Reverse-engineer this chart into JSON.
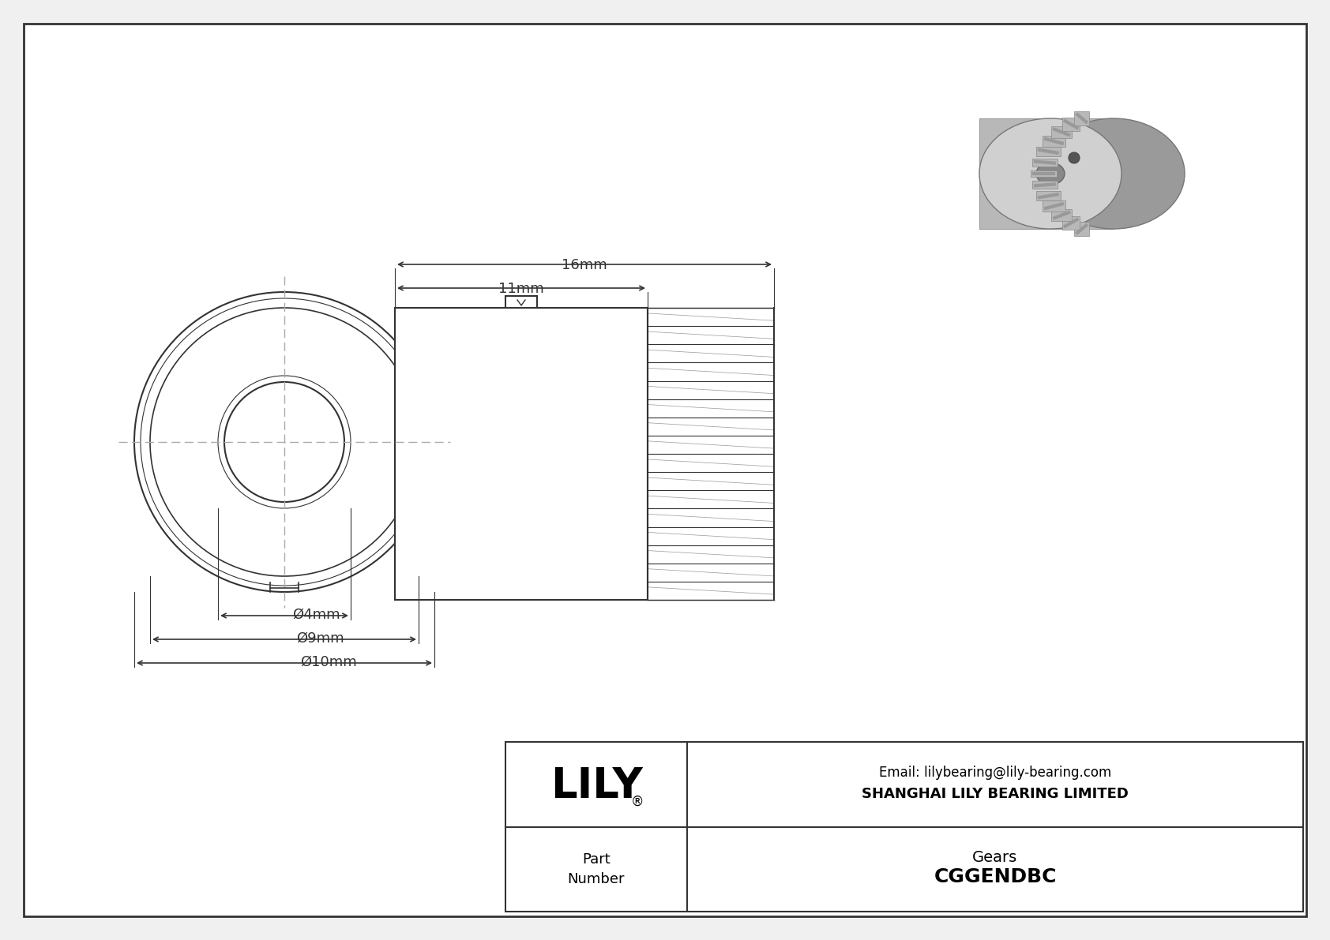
{
  "bg_color": "#f0f0f0",
  "inner_bg_color": "#ffffff",
  "border_color": "#333333",
  "line_color": "#333333",
  "dim_line_color": "#333333",
  "dash_color": "#aaaaaa",
  "company_name": "SHANGHAI LILY BEARING LIMITED",
  "email": "Email: lilybearing@lily-bearing.com",
  "brand": "LILY",
  "registered": "®",
  "part_label": "Part\nNumber",
  "part_number": "CGGENDBC",
  "category": "Gears",
  "dim_d10": "Ø10mm",
  "dim_d9": "Ø9mm",
  "dim_d4": "Ø4mm",
  "dim_16": "16mm",
  "dim_11": "11mm"
}
